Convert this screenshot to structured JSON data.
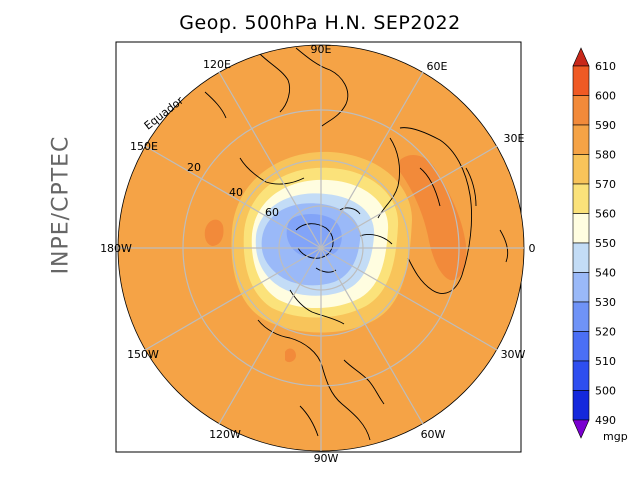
{
  "title": "Geop. 500hPa H.N. SEP2022",
  "side_label": "INPE/CPTEC",
  "equator_label": "Equador",
  "longitude_labels": {
    "top": "90E",
    "bottom": "90W",
    "left": "180W",
    "right": "0",
    "upper_right_1": "60E",
    "upper_right_2": "30E",
    "upper_left_1": "120E",
    "upper_left_2": "150E",
    "lower_left_1": "150W",
    "lower_left_2": "120W",
    "lower_right_1": "30W",
    "lower_right_2": "60W"
  },
  "latitude_labels": [
    "20",
    "40",
    "60"
  ],
  "colorbar": {
    "unit": "mgp",
    "levels": [
      "490",
      "500",
      "510",
      "520",
      "530",
      "540",
      "550",
      "560",
      "570",
      "580",
      "590",
      "600",
      "610"
    ],
    "colors": [
      "#7a00d0",
      "#1428dc",
      "#2e4ef0",
      "#4b6ff5",
      "#6f93f7",
      "#9ab9f8",
      "#c3dcf6",
      "#fffde0",
      "#fbe27a",
      "#f8c45a",
      "#f5a346",
      "#f28a3a",
      "#ef5a24",
      "#c8281a"
    ]
  },
  "field_colors": {
    "outer": "#f5a346",
    "ring_580": "#f8c45a",
    "ring_570": "#fbe27a",
    "ring_560": "#fffde0",
    "ring_550": "#c3dcf6",
    "core_540": "#9ab9f8",
    "core_530": "#6f93f7",
    "high_590": "#f28a3a"
  }
}
